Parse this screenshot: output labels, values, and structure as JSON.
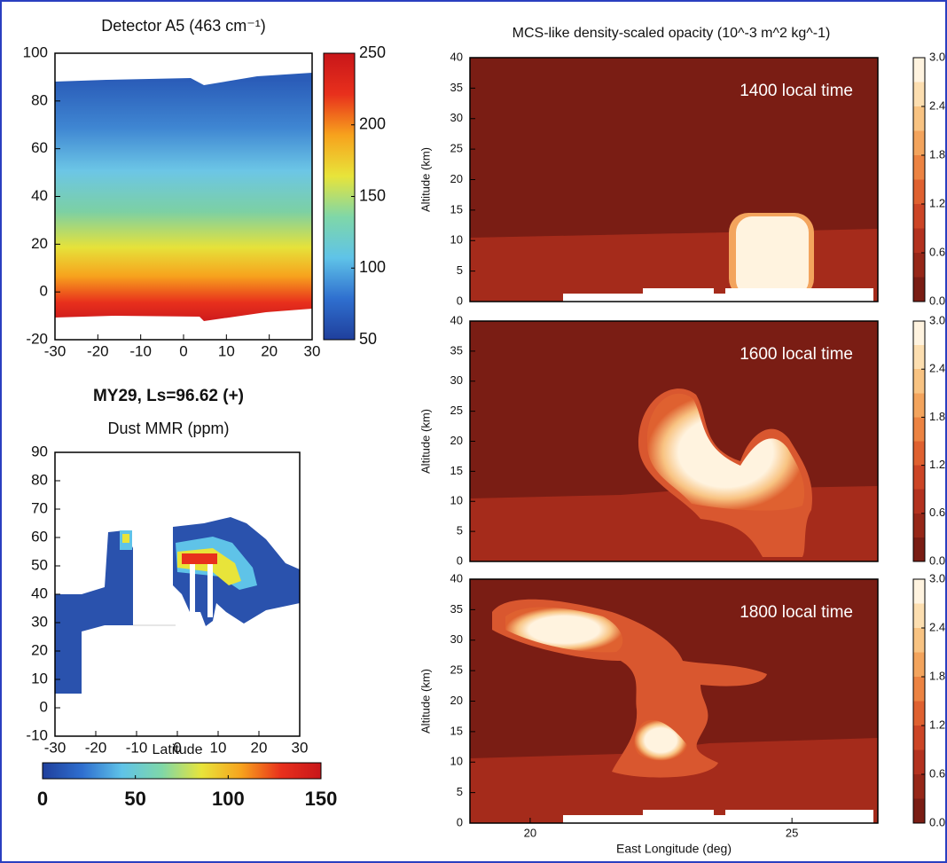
{
  "chart_data": [
    {
      "type": "heatmap",
      "title": "Detector A5 (463 cm⁻¹)",
      "xlim": [
        -30,
        30
      ],
      "xticks": [
        -30,
        -20,
        -10,
        0,
        10,
        20,
        30
      ],
      "ylim": [
        -20,
        100
      ],
      "yticks": [
        -20,
        0,
        20,
        40,
        60,
        80,
        100
      ],
      "colorbar": {
        "orientation": "vertical",
        "lim": [
          50,
          250
        ],
        "ticks": [
          50,
          100,
          150,
          200,
          250
        ],
        "discrete": false,
        "colors": [
          "#1f3f9c",
          "#2f6fcf",
          "#5fc3e8",
          "#7fd7a8",
          "#e8e43a",
          "#f7a21d",
          "#e8301c",
          "#c8161a"
        ]
      }
    },
    {
      "type": "heatmap",
      "subtitle": "MY29, Ls=96.62   (+)",
      "title": "Dust MMR (ppm)",
      "xlabel": "Latitude",
      "xlim": [
        -30,
        30
      ],
      "xticks": [
        -30,
        -20,
        -10,
        0,
        10,
        20,
        30
      ],
      "ylim": [
        -10,
        90
      ],
      "yticks": [
        -10,
        0,
        10,
        20,
        30,
        40,
        50,
        60,
        70,
        80,
        90
      ],
      "colorbar": {
        "orientation": "horizontal",
        "lim": [
          0,
          150
        ],
        "ticks": [
          0,
          50,
          100,
          150
        ],
        "discrete": false,
        "colors": [
          "#1f3f9c",
          "#2f6fcf",
          "#5fc3e8",
          "#7fd7a8",
          "#e8e43a",
          "#f7a21d",
          "#e8301c",
          "#c8161a"
        ]
      }
    },
    {
      "type": "contour",
      "title": "MCS-like density-scaled opacity (10^-3 m^2 kg^-1)",
      "annotation": "1400 local time",
      "ylabel": "Altitude (km)",
      "xlim": [
        18.85,
        26.64
      ],
      "ylim": [
        0,
        40
      ],
      "yticks": [
        0,
        5,
        10,
        15,
        20,
        25,
        30,
        35,
        40
      ],
      "colorbar": {
        "orientation": "vertical",
        "lim": [
          0,
          3
        ],
        "ticks": [
          {
            "value": 0,
            "label": "0.0"
          },
          0.6,
          1.2,
          1.8,
          2.4,
          {
            "value": 3,
            "label": "3.0"
          }
        ],
        "discrete": true,
        "colors": [
          "#7a1d14",
          "#962718",
          "#b3321f",
          "#cc4526",
          "#df6130",
          "#ec8342",
          "#f3a45d",
          "#f8c382",
          "#fcdeb0",
          "#fff3df"
        ]
      }
    },
    {
      "type": "contour",
      "annotation": "1600 local time",
      "ylabel": "Altitude (km)",
      "xlim": [
        18.85,
        26.64
      ],
      "ylim": [
        0,
        40
      ],
      "yticks": [
        0,
        5,
        10,
        15,
        20,
        25,
        30,
        35,
        40
      ],
      "colorbar": {
        "orientation": "vertical",
        "lim": [
          0,
          3
        ],
        "ticks": [
          {
            "value": 0,
            "label": "0.0"
          },
          0.6,
          1.2,
          1.8,
          2.4,
          {
            "value": 3,
            "label": "3.0"
          }
        ],
        "discrete": true,
        "colors": [
          "#7a1d14",
          "#962718",
          "#b3321f",
          "#cc4526",
          "#df6130",
          "#ec8342",
          "#f3a45d",
          "#f8c382",
          "#fcdeb0",
          "#fff3df"
        ]
      }
    },
    {
      "type": "contour",
      "annotation": "1800 local time",
      "ylabel": "Altitude (km)",
      "xlabel": "East Longitude (deg)",
      "xlim": [
        18.85,
        26.64
      ],
      "xticks": [
        20,
        25
      ],
      "ylim": [
        0,
        40
      ],
      "yticks": [
        0,
        5,
        10,
        15,
        20,
        25,
        30,
        35,
        40
      ],
      "colorbar": {
        "orientation": "vertical",
        "lim": [
          0,
          3
        ],
        "ticks": [
          {
            "value": 0,
            "label": "0.0"
          },
          0.6,
          1.2,
          1.8,
          2.4,
          {
            "value": 3,
            "label": "3.0"
          }
        ],
        "discrete": true,
        "colors": [
          "#7a1d14",
          "#962718",
          "#b3321f",
          "#cc4526",
          "#df6130",
          "#ec8342",
          "#f3a45d",
          "#f8c382",
          "#fcdeb0",
          "#fff3df"
        ]
      }
    }
  ]
}
